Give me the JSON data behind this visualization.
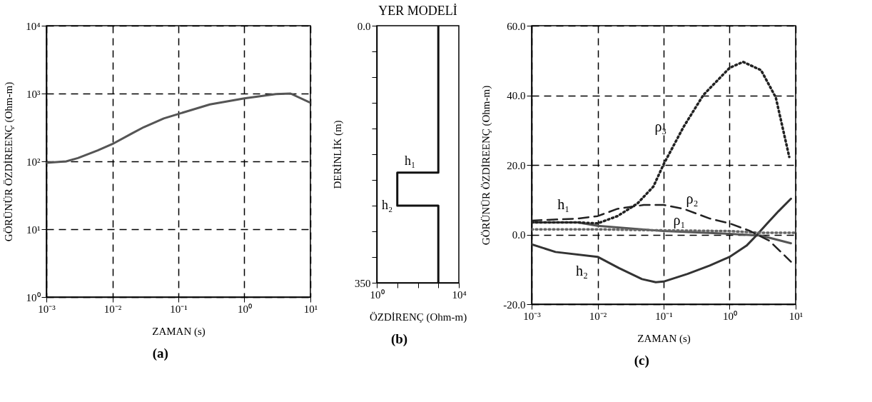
{
  "chart_data": [
    {
      "type": "line",
      "xlabel": "ZAMAN (s)",
      "ylabel": "GÖRÜNÜR ÖZDİREENÇ (Ohm-m)",
      "log": "xy",
      "grid": true,
      "annotations": [
        "(a)"
      ],
      "xlim": [
        0.001,
        10
      ],
      "xticks": [
        {
          "value": 0.001,
          "label": "10⁻³"
        },
        {
          "value": 0.01,
          "label": "10⁻²"
        },
        {
          "value": 0.1,
          "label": "10⁻¹"
        },
        {
          "value": 1,
          "label": "10⁰"
        },
        {
          "value": 10,
          "label": "10¹"
        }
      ],
      "ylim": [
        1,
        10000
      ],
      "yticks": [
        {
          "value": 1,
          "label": "10⁰"
        },
        {
          "value": 10,
          "label": "10¹"
        },
        {
          "value": 100,
          "label": "10²"
        },
        {
          "value": 1000,
          "label": "10³"
        },
        {
          "value": 10000,
          "label": "10⁴"
        }
      ],
      "series": [
        {
          "color": "#555555",
          "x": [
            0.001,
            0.002,
            0.003,
            0.006,
            0.01,
            0.02,
            0.03,
            0.06,
            0.1,
            0.3,
            1,
            3,
            5,
            10
          ],
          "values": [
            95,
            100,
            112,
            145,
            180,
            260,
            320,
            430,
            500,
            690,
            850,
            980,
            1000,
            730
          ]
        }
      ]
    },
    {
      "type": "line",
      "title": "YER MODELİ",
      "xlabel": "ÖZDİRENÇ (Ohm-m)",
      "ylabel": "DERİNLİK (m)",
      "log": "x",
      "annotations": [
        "(b)",
        {
          "text": "h₁",
          "x": 10,
          "y": 200
        },
        {
          "text": "h₂",
          "x": 10,
          "y": 245
        }
      ],
      "xlim": [
        1,
        10000
      ],
      "xticks": [
        {
          "value": 1,
          "label": "10⁰"
        },
        {
          "value": 10,
          "label": null
        },
        {
          "value": 100,
          "label": null
        },
        {
          "value": 1000,
          "label": null
        },
        {
          "value": 10000,
          "label": "10⁴"
        }
      ],
      "ylim": [
        350,
        0
      ],
      "yticks": [
        {
          "value": 0,
          "label": "0.0"
        },
        {
          "value": 35,
          "label": null
        },
        {
          "value": 70,
          "label": null
        },
        {
          "value": 105,
          "label": null
        },
        {
          "value": 140,
          "label": null
        },
        {
          "value": 175,
          "label": null
        },
        {
          "value": 210,
          "label": null
        },
        {
          "value": 245,
          "label": null
        },
        {
          "value": 280,
          "label": null
        },
        {
          "value": 315,
          "label": null
        },
        350
      ],
      "series": [
        {
          "color": "#111111",
          "x": [
            1000,
            1000,
            10,
            10,
            1000,
            1000
          ],
          "values": [
            0,
            200,
            200,
            245,
            245,
            350
          ]
        }
      ]
    },
    {
      "type": "line",
      "xlabel": "ZAMAN (s)",
      "ylabel": "GÖRÜNÜR ÖZDİREENÇ (Ohm-m)",
      "log": "x",
      "grid": true,
      "annotations": [
        "(c)"
      ],
      "xlim": [
        0.001,
        10
      ],
      "xticks": [
        {
          "value": 0.001,
          "label": "10⁻³"
        },
        {
          "value": 0.01,
          "label": "10⁻²"
        },
        {
          "value": 0.1,
          "label": "10⁻¹"
        },
        {
          "value": 1,
          "label": "10⁰"
        },
        {
          "value": 10,
          "label": "10¹"
        }
      ],
      "ylim": [
        -20,
        60
      ],
      "yticks": [
        {
          "value": -20,
          "label": "-20.0"
        },
        {
          "value": 0,
          "label": "0.0"
        },
        {
          "value": 20,
          "label": "20.0"
        },
        {
          "value": 40,
          "label": "40.0"
        },
        {
          "value": 60,
          "label": "60.0"
        }
      ],
      "series": [
        {
          "name": "h₁",
          "color": "#555555",
          "line_style": "solid",
          "x": [
            0.001,
            0.005,
            0.01,
            0.1,
            1,
            3,
            8.5
          ],
          "values": [
            3.5,
            3.5,
            2.5,
            1,
            0.2,
            -0.3,
            -2.5
          ]
        },
        {
          "name": "h₂",
          "color": "#333333",
          "line_style": "solid",
          "x": [
            0.001,
            0.0023,
            0.01,
            0.021,
            0.047,
            0.076,
            0.1,
            0.23,
            0.5,
            1,
            1.8,
            2.5,
            3.7,
            5.5,
            8.5
          ],
          "values": [
            -2.8,
            -5,
            -6.4,
            -9.6,
            -12.8,
            -13.7,
            -13.5,
            -11.3,
            -8.9,
            -6.4,
            -3.2,
            -0.4,
            3.2,
            6.7,
            10.3
          ]
        },
        {
          "name": "ρ₁",
          "color": "#666666",
          "line_style": "dotted",
          "x": [
            0.001,
            0.01,
            0.1,
            1,
            3,
            10
          ],
          "values": [
            1.5,
            1.5,
            1.2,
            1,
            0.5,
            0.5
          ]
        },
        {
          "name": "ρ₂",
          "color": "#222222",
          "line_style": "dashed",
          "x": [
            0.001,
            0.005,
            0.01,
            0.02,
            0.05,
            0.1,
            0.2,
            0.5,
            1,
            2,
            4,
            8.5
          ],
          "values": [
            4,
            4.6,
            5.3,
            7.4,
            8.5,
            8.5,
            7.4,
            4.6,
            3.2,
            1.1,
            -1.8,
            -7.8
          ]
        },
        {
          "name": "ρ₃",
          "color": "#222222",
          "line_style": "dotted",
          "x": [
            0.001,
            0.005,
            0.01,
            0.02,
            0.04,
            0.07,
            0.1,
            0.2,
            0.4,
            1,
            1.6,
            3,
            5,
            8
          ],
          "values": [
            3.5,
            3.5,
            3.2,
            5.3,
            8.9,
            13.8,
            20.2,
            30.9,
            40.1,
            47.9,
            49.6,
            47.2,
            39.4,
            22.3
          ]
        }
      ]
    }
  ]
}
